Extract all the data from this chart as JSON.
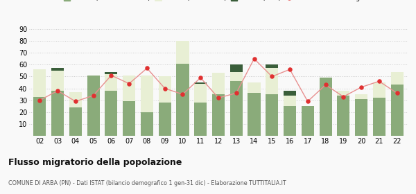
{
  "years": [
    "02",
    "03",
    "04",
    "05",
    "06",
    "07",
    "08",
    "09",
    "10",
    "11",
    "12",
    "13",
    "14",
    "15",
    "16",
    "17",
    "18",
    "19",
    "20",
    "21",
    "22"
  ],
  "iscritti_altri_comuni": [
    33,
    38,
    24,
    51,
    38,
    29,
    20,
    28,
    61,
    28,
    35,
    46,
    36,
    35,
    25,
    25,
    49,
    34,
    31,
    32,
    43
  ],
  "iscritti_estero": [
    23,
    17,
    13,
    0,
    14,
    22,
    31,
    22,
    19,
    16,
    18,
    8,
    9,
    22,
    9,
    0,
    0,
    4,
    4,
    13,
    11
  ],
  "iscritti_altri": [
    0,
    2,
    0,
    0,
    2,
    0,
    0,
    0,
    0,
    1,
    0,
    6,
    0,
    3,
    4,
    0,
    0,
    0,
    0,
    0,
    0
  ],
  "cancellati": [
    30,
    38,
    29,
    34,
    51,
    44,
    57,
    40,
    35,
    49,
    32,
    36,
    65,
    50,
    56,
    29,
    43,
    33,
    41,
    46,
    36
  ],
  "color_altri_comuni": "#8aab7a",
  "color_estero": "#e8efd4",
  "color_altri": "#3a5e3a",
  "color_cancellati": "#e03030",
  "color_line": "#e89090",
  "ylim": [
    0,
    90
  ],
  "yticks": [
    10,
    20,
    30,
    40,
    50,
    60,
    70,
    80,
    90
  ],
  "title": "Flusso migratorio della popolazione",
  "subtitle": "COMUNE DI ARBA (PN) - Dati ISTAT (bilancio demografico 1 gen-31 dic) - Elaborazione TUTTITALIA.IT",
  "background_color": "#f9f9f9"
}
